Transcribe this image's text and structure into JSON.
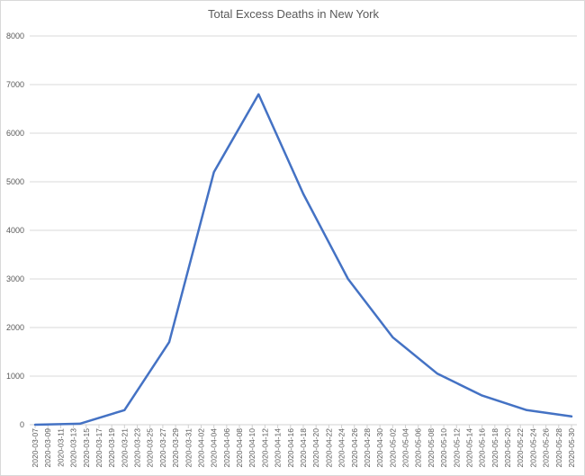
{
  "chart_data": {
    "type": "line",
    "title": "Total Excess Deaths in New York",
    "xlabel": "",
    "ylabel": "",
    "ylim": [
      0,
      8000
    ],
    "yticks": [
      0,
      1000,
      2000,
      3000,
      4000,
      5000,
      6000,
      7000,
      8000
    ],
    "grid": true,
    "legend": null,
    "x_tick_labels": [
      "2020-03-07",
      "2020-03-09",
      "2020-03-11",
      "2020-03-13",
      "2020-03-15",
      "2020-03-17",
      "2020-03-19",
      "2020-03-21",
      "2020-03-23",
      "2020-03-25",
      "2020-03-27",
      "2020-03-29",
      "2020-03-31",
      "2020-04-02",
      "2020-04-04",
      "2020-04-06",
      "2020-04-08",
      "2020-04-10",
      "2020-04-12",
      "2020-04-14",
      "2020-04-16",
      "2020-04-18",
      "2020-04-20",
      "2020-04-22",
      "2020-04-24",
      "2020-04-26",
      "2020-04-28",
      "2020-04-30",
      "2020-05-02",
      "2020-05-04",
      "2020-05-06",
      "2020-05-08",
      "2020-05-10",
      "2020-05-12",
      "2020-05-14",
      "2020-05-16",
      "2020-05-18",
      "2020-05-20",
      "2020-05-22",
      "2020-05-24",
      "2020-05-26",
      "2020-05-28",
      "2020-05-30"
    ],
    "x": [
      "2020-03-07",
      "2020-03-14",
      "2020-03-21",
      "2020-03-28",
      "2020-04-04",
      "2020-04-11",
      "2020-04-18",
      "2020-04-25",
      "2020-05-02",
      "2020-05-09",
      "2020-05-16",
      "2020-05-23",
      "2020-05-30"
    ],
    "series": [
      {
        "name": "Total Excess Deaths",
        "color": "#4472C4",
        "values": [
          0,
          20,
          300,
          1700,
          5200,
          6800,
          4750,
          3000,
          1800,
          1050,
          600,
          300,
          170
        ]
      }
    ]
  }
}
